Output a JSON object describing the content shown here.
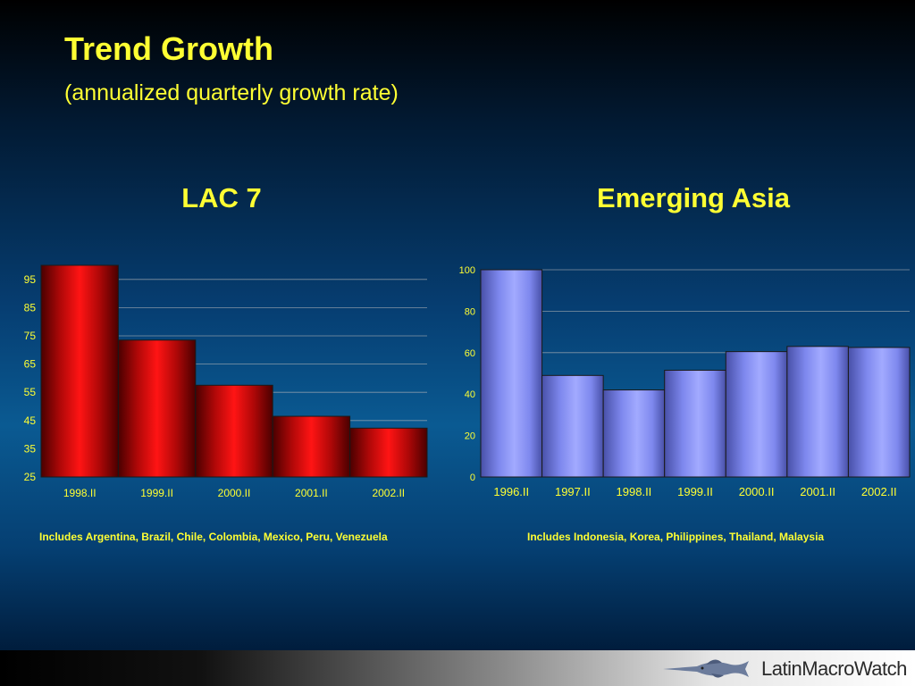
{
  "page": {
    "title": "Trend Growth",
    "subtitle": "(annualized quarterly growth rate)",
    "logo_text": "LatinMacroWatch"
  },
  "colors": {
    "title_yellow": "#ffff33",
    "lac_bar": "#cc0a0a",
    "asia_bar": "#7c86ec",
    "axis_text": "#ffff33",
    "grid": "#b9b9b9"
  },
  "icons": {
    "logo": "swordfish-logo-icon"
  },
  "chart_data": [
    {
      "type": "bar",
      "title": "LAC 7",
      "note": "Includes Argentina, Brazil, Chile, Colombia, Mexico, Peru, Venezuela",
      "categories": [
        "1998.II",
        "1999.II",
        "2000.II",
        "2001.II",
        "2002.II"
      ],
      "values": [
        100,
        73.5,
        57.5,
        46.5,
        42.3
      ],
      "ylim": [
        25,
        100
      ],
      "yticks": [
        25,
        35,
        45,
        55,
        65,
        75,
        85,
        95
      ],
      "grid": true,
      "xlabel": "",
      "ylabel": ""
    },
    {
      "type": "bar",
      "title": "Emerging Asia",
      "note": "Includes Indonesia, Korea, Philippines, Thailand, Malaysia",
      "categories": [
        "1996.II",
        "1997.II",
        "1998.II",
        "1999.II",
        "2000.II",
        "2001.II",
        "2002.II"
      ],
      "values": [
        100,
        49,
        42,
        51.5,
        60.5,
        63,
        62.5
      ],
      "ylim": [
        0,
        100
      ],
      "yticks": [
        0,
        20,
        40,
        60,
        80,
        100
      ],
      "grid": true,
      "xlabel": "",
      "ylabel": ""
    }
  ]
}
